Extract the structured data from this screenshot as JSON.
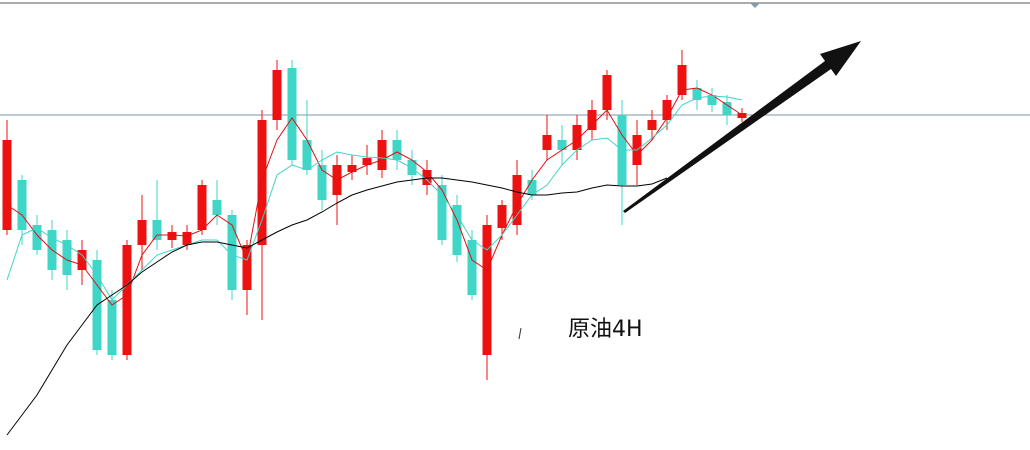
{
  "chart_data": {
    "type": "candlestick",
    "annotation": "原油4H",
    "ylim": [
      0,
      450
    ],
    "up_color": "#ee1111",
    "down_color": "#3fd6c8",
    "open": [
      220,
      270,
      225,
      220,
      210,
      180,
      190,
      150,
      95,
      205,
      230,
      210,
      205,
      220,
      250,
      235,
      160,
      205,
      330,
      382,
      310,
      285,
      255,
      278,
      285,
      280,
      310,
      290,
      265,
      265,
      245,
      210,
      95,
      222,
      225,
      270,
      300,
      310,
      300,
      320,
      340,
      335,
      285,
      320,
      330,
      355,
      362,
      355,
      348,
      332
    ],
    "high": [
      330,
      275,
      235,
      230,
      220,
      210,
      200,
      160,
      210,
      255,
      270,
      225,
      225,
      270,
      270,
      240,
      210,
      340,
      390,
      390,
      350,
      300,
      295,
      295,
      305,
      320,
      320,
      300,
      290,
      275,
      255,
      220,
      235,
      250,
      290,
      280,
      335,
      325,
      335,
      350,
      380,
      350,
      330,
      340,
      355,
      400,
      370,
      362,
      355,
      342
    ],
    "low": [
      215,
      205,
      195,
      170,
      160,
      165,
      95,
      90,
      90,
      180,
      200,
      202,
      200,
      215,
      225,
      150,
      135,
      130,
      320,
      285,
      275,
      240,
      225,
      270,
      275,
      272,
      280,
      265,
      255,
      205,
      188,
      150,
      70,
      210,
      215,
      250,
      290,
      285,
      290,
      310,
      330,
      225,
      265,
      310,
      320,
      350,
      340,
      338,
      325,
      328
    ],
    "close": [
      310,
      220,
      200,
      180,
      175,
      200,
      100,
      95,
      205,
      230,
      210,
      218,
      218,
      265,
      235,
      160,
      205,
      330,
      380,
      290,
      280,
      250,
      285,
      285,
      292,
      310,
      290,
      275,
      280,
      210,
      195,
      155,
      225,
      245,
      275,
      255,
      315,
      300,
      325,
      340,
      375,
      265,
      315,
      330,
      350,
      385,
      350,
      345,
      335,
      337
    ],
    "lines": [
      {
        "color": "#dd1111",
        "values": [
          245,
          235,
          215,
          200,
          190,
          185,
          165,
          145,
          155,
          195,
          215,
          215,
          214,
          220,
          235,
          225,
          190,
          270,
          310,
          332,
          310,
          280,
          270,
          278,
          285,
          290,
          298,
          290,
          278,
          260,
          230,
          190,
          180,
          215,
          245,
          270,
          290,
          300,
          310,
          325,
          340,
          315,
          295,
          310,
          332,
          360,
          362,
          355,
          345,
          335
        ]
      },
      {
        "color": "#3fd6c8",
        "values": [
          170,
          215,
          222,
          212,
          205,
          195,
          175,
          150,
          165,
          180,
          195,
          200,
          205,
          210,
          210,
          195,
          190,
          230,
          275,
          285,
          280,
          290,
          298,
          295,
          293,
          292,
          290,
          282,
          270,
          255,
          235,
          210,
          200,
          215,
          235,
          255,
          265,
          285,
          300,
          310,
          312,
          300,
          300,
          312,
          325,
          345,
          352,
          354,
          353,
          350
        ]
      },
      {
        "color": "#000000",
        "values": [
          15,
          35,
          55,
          80,
          105,
          125,
          145,
          155,
          165,
          178,
          188,
          198,
          205,
          208,
          208,
          205,
          202,
          210,
          218,
          225,
          230,
          238,
          247,
          255,
          260,
          264,
          268,
          270,
          272,
          272,
          270,
          268,
          265,
          262,
          258,
          255,
          255,
          257,
          258,
          262,
          265,
          264,
          264,
          266,
          272,
          null,
          null,
          null,
          null,
          null
        ]
      }
    ],
    "reference_line": {
      "value": 335,
      "color": "#7f97a8"
    }
  }
}
